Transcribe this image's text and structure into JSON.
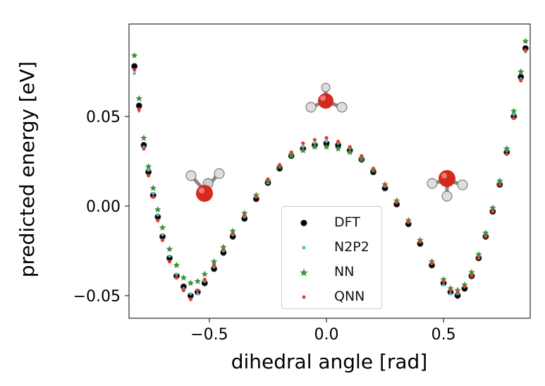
{
  "chart_data": {
    "type": "scatter",
    "xlabel": "dihedral angle [rad]",
    "ylabel": "predicted energy [eV]",
    "xlim": [
      -0.843,
      0.87
    ],
    "ylim": [
      -0.0626,
      0.1016
    ],
    "xticks": [
      -0.5,
      0.0,
      0.5
    ],
    "xtick_labels": [
      "−0.5",
      "0.0",
      "0.5"
    ],
    "yticks": [
      -0.05,
      0.0,
      0.05
    ],
    "ytick_labels": [
      "−0.05",
      "0.00",
      "0.05"
    ],
    "grid": false,
    "legend_position": "bottom-center",
    "x": [
      -0.82,
      -0.8,
      -0.78,
      -0.76,
      -0.74,
      -0.72,
      -0.7,
      -0.67,
      -0.64,
      -0.61,
      -0.58,
      -0.55,
      -0.52,
      -0.48,
      -0.44,
      -0.4,
      -0.35,
      -0.3,
      -0.25,
      -0.2,
      -0.15,
      -0.1,
      -0.05,
      0.0,
      0.05,
      0.1,
      0.15,
      0.2,
      0.25,
      0.3,
      0.35,
      0.4,
      0.45,
      0.5,
      0.53,
      0.56,
      0.59,
      0.62,
      0.65,
      0.68,
      0.71,
      0.74,
      0.77,
      0.8,
      0.83,
      0.85
    ],
    "series": [
      {
        "name": "DFT",
        "color": "#000000",
        "marker": "circle",
        "values": [
          0.078,
          0.056,
          0.034,
          0.019,
          0.006,
          -0.006,
          -0.017,
          -0.029,
          -0.039,
          -0.045,
          -0.05,
          -0.048,
          -0.043,
          -0.035,
          -0.026,
          -0.017,
          -0.007,
          0.004,
          0.013,
          0.021,
          0.028,
          0.032,
          0.034,
          0.035,
          0.034,
          0.031,
          0.026,
          0.019,
          0.01,
          0.001,
          -0.01,
          -0.021,
          -0.033,
          -0.043,
          -0.048,
          -0.05,
          -0.046,
          -0.039,
          -0.029,
          -0.017,
          -0.003,
          0.012,
          0.03,
          0.05,
          0.072,
          0.088
        ]
      },
      {
        "name": "N2P2",
        "color": "#4fb6c2",
        "marker": "dot",
        "values": [
          0.074,
          0.053,
          0.033,
          0.02,
          0.007,
          -0.005,
          -0.016,
          -0.028,
          -0.038,
          -0.046,
          -0.049,
          -0.049,
          -0.042,
          -0.034,
          -0.025,
          -0.016,
          -0.006,
          0.005,
          0.013,
          0.022,
          0.029,
          0.033,
          0.035,
          0.036,
          0.035,
          0.032,
          0.027,
          0.02,
          0.011,
          0.002,
          -0.009,
          -0.02,
          -0.032,
          -0.044,
          -0.049,
          -0.049,
          -0.045,
          -0.038,
          -0.028,
          -0.016,
          -0.002,
          0.013,
          0.031,
          0.051,
          0.071,
          0.086
        ]
      },
      {
        "name": "NN",
        "color": "#3f8f3a",
        "marker": "star",
        "values": [
          0.084,
          0.06,
          0.038,
          0.022,
          0.01,
          -0.002,
          -0.012,
          -0.024,
          -0.033,
          -0.04,
          -0.043,
          -0.042,
          -0.038,
          -0.031,
          -0.023,
          -0.014,
          -0.004,
          0.006,
          0.014,
          0.022,
          0.028,
          0.031,
          0.033,
          0.033,
          0.032,
          0.03,
          0.026,
          0.02,
          0.012,
          0.003,
          -0.008,
          -0.019,
          -0.031,
          -0.041,
          -0.046,
          -0.047,
          -0.044,
          -0.037,
          -0.027,
          -0.015,
          -0.001,
          0.014,
          0.032,
          0.053,
          0.075,
          0.092
        ]
      },
      {
        "name": "QNN",
        "color": "#e23a2c",
        "marker": "dot",
        "values": [
          0.076,
          0.054,
          0.032,
          0.017,
          0.005,
          -0.008,
          -0.019,
          -0.031,
          -0.04,
          -0.047,
          -0.052,
          -0.047,
          -0.041,
          -0.033,
          -0.024,
          -0.015,
          -0.005,
          0.005,
          0.015,
          0.023,
          0.03,
          0.035,
          0.037,
          0.038,
          0.036,
          0.033,
          0.028,
          0.021,
          0.012,
          0.002,
          -0.009,
          -0.02,
          -0.032,
          -0.042,
          -0.047,
          -0.048,
          -0.045,
          -0.039,
          -0.029,
          -0.017,
          -0.003,
          0.012,
          0.029,
          0.049,
          0.07,
          0.087
        ]
      }
    ]
  }
}
